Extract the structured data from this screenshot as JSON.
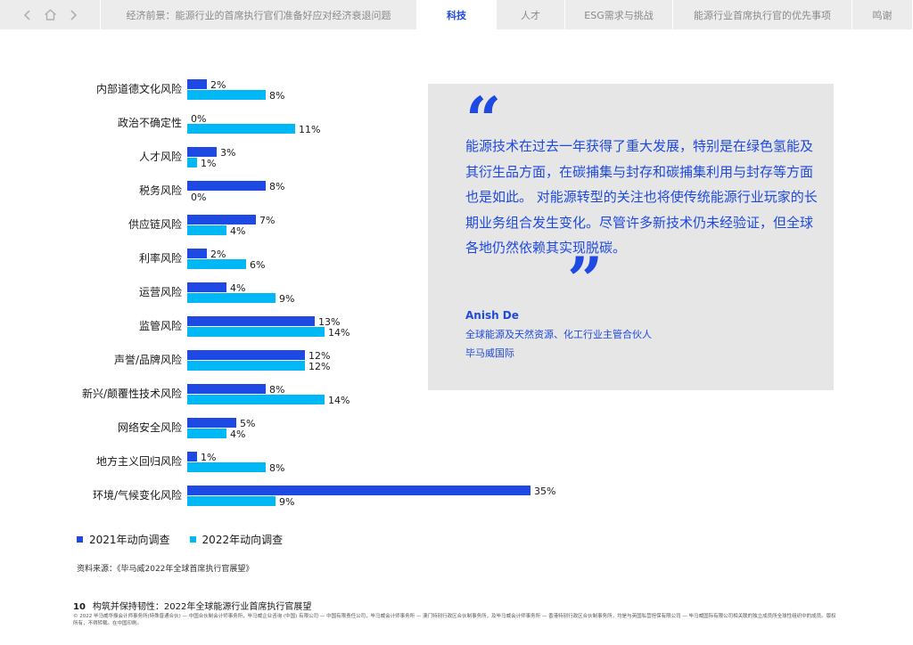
{
  "nav": {
    "back_icon": "chevron-left-icon",
    "home_icon": "home-icon",
    "forward_icon": "chevron-right-icon",
    "tabs": [
      {
        "label": "经济前景：能源行业的首席执行官们准备好应对经济衰退问题",
        "active": false
      },
      {
        "label": "科技",
        "active": true
      },
      {
        "label": "人才",
        "active": false
      },
      {
        "label": "ESG需求与挑战",
        "active": false
      },
      {
        "label": "能源行业首席执行官的优先事项",
        "active": false
      },
      {
        "label": "鸣谢",
        "active": false
      }
    ]
  },
  "chart_data": {
    "type": "bar",
    "orientation": "horizontal",
    "categories": [
      "内部道德文化风险",
      "政治不确定性",
      "人才风险",
      "税务风险",
      "供应链风险",
      "利率风险",
      "运营风险",
      "监管风险",
      "声誉/品牌风险",
      "新兴/颠覆性技术风险",
      "网络安全风险",
      "地方主义回归风险",
      "环境/气候变化风险"
    ],
    "series": [
      {
        "name": "2021年动向调查",
        "color": "#1e49e2",
        "values": [
          2,
          0,
          3,
          8,
          7,
          2,
          4,
          13,
          12,
          8,
          5,
          1,
          35
        ]
      },
      {
        "name": "2022年动向调查",
        "color": "#00b8f5",
        "values": [
          8,
          11,
          1,
          0,
          4,
          6,
          9,
          14,
          12,
          14,
          4,
          8,
          9
        ]
      }
    ],
    "value_suffix": "%",
    "legend_position": "bottom-left",
    "grid": false
  },
  "source": "资料来源：《毕马威2022年全球首席执行官展望》",
  "quote": {
    "open_mark": "“",
    "close_mark": "”",
    "text": "能源技术在过去一年获得了重大发展，特别是在绿色氢能及其衍生品方面，在碳捕集与封存和碳捕集利用与封存等方面也是如此。 对能源转型的关注也将使传统能源行业玩家的长期业务组合发生变化。尽管许多新技术仍未经验证，但全球各地仍然依赖其实现脱碳。",
    "author": "Anish De",
    "role": "全球能源及天然资源、化工行业主管合伙人",
    "org": "毕马威国际"
  },
  "footer": {
    "page_number": "10",
    "title": "构筑并保持韧性：2022年全球能源行业首席执行官展望",
    "legal": "© 2022 毕马威华振会计师事务所(特殊普通合伙) — 中国合伙制会计师事务所，毕马威企业咨询 (中国) 有限公司 — 中国有限责任公司，毕马威会计师事务所 — 澳门特别行政区合伙制事务所，及毕马威会计师事务所 — 香港特别行政区合伙制事务所，均是与英国私营担保有限公司 — 毕马威国际有限公司相关联的独立成员所全球性组织中的成员。版权所有，不得转载。在中国印刷。"
  }
}
